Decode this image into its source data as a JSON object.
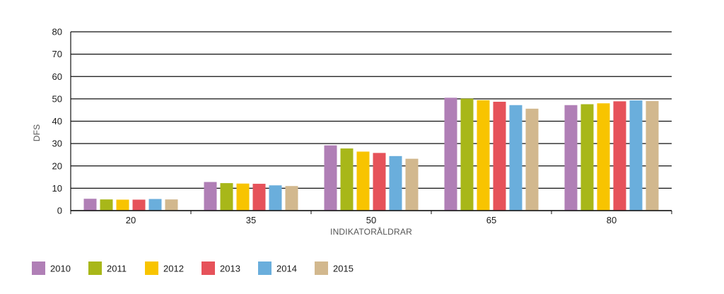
{
  "chart_data": {
    "type": "bar",
    "xlabel": "INDIKATORÅLDRAR",
    "ylabel": "DFS",
    "ylim": [
      0,
      80
    ],
    "yticks": [
      0,
      10,
      20,
      30,
      40,
      50,
      60,
      70,
      80
    ],
    "grid": true,
    "legend_position": "bottom-left",
    "categories": [
      "20",
      "35",
      "50",
      "65",
      "80"
    ],
    "series": [
      {
        "name": "2010",
        "color": "#b07fb6",
        "values": [
          5.3,
          12.8,
          29.2,
          50.5,
          47.2
        ]
      },
      {
        "name": "2011",
        "color": "#a8b719",
        "values": [
          5.0,
          12.3,
          27.8,
          50.1,
          47.6
        ]
      },
      {
        "name": "2012",
        "color": "#f8c400",
        "values": [
          4.9,
          12.1,
          26.4,
          49.4,
          48.0
        ]
      },
      {
        "name": "2013",
        "color": "#e6525a",
        "values": [
          4.9,
          12.0,
          25.8,
          48.7,
          48.9
        ]
      },
      {
        "name": "2014",
        "color": "#6aaedc",
        "values": [
          5.2,
          11.3,
          24.4,
          47.2,
          49.3
        ]
      },
      {
        "name": "2015",
        "color": "#d2b88e",
        "values": [
          5.0,
          11.0,
          23.2,
          45.6,
          49.0
        ]
      }
    ]
  }
}
